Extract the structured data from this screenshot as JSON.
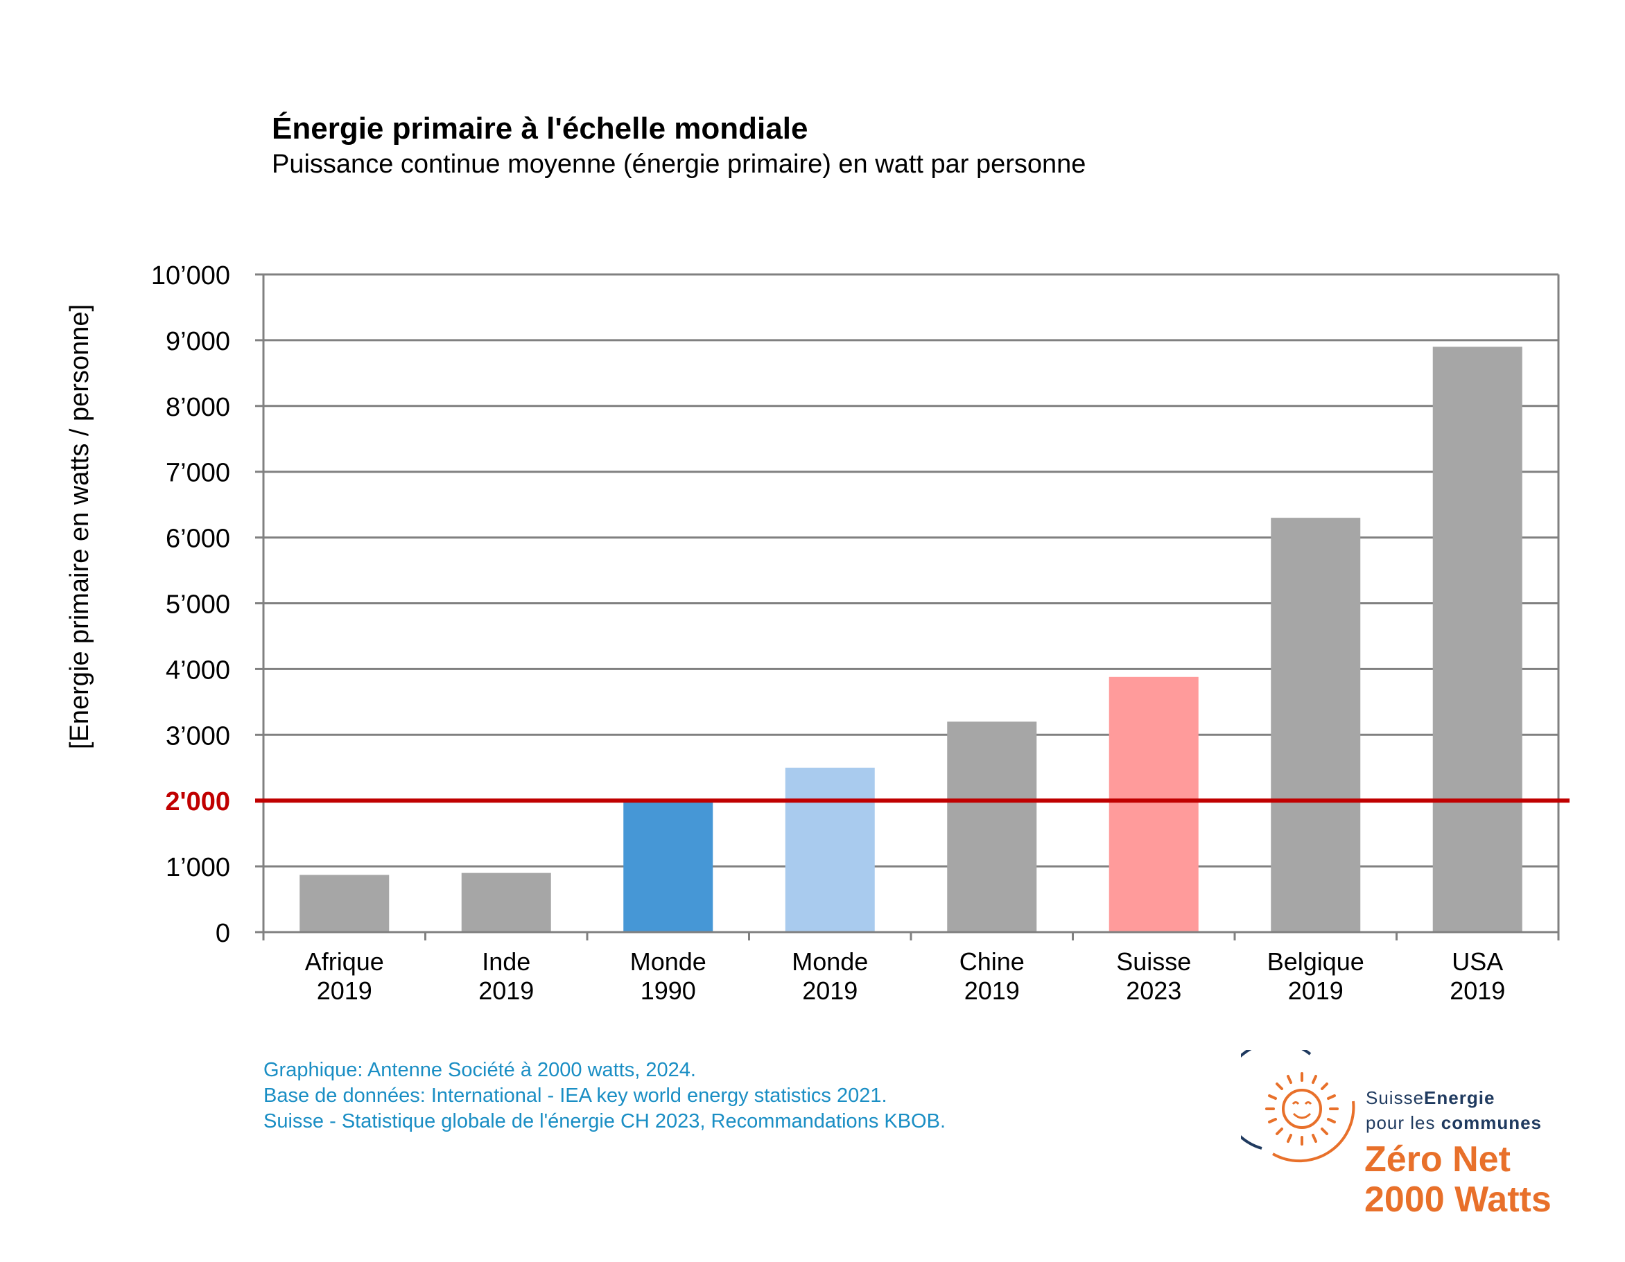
{
  "chart_data": {
    "type": "bar",
    "title": "Énergie primaire à l'échelle mondiale",
    "subtitle": "Puissance continue moyenne (énergie primaire) en watt par personne",
    "ylabel": "[Energie primaire en watts / personne]",
    "ylim": [
      0,
      10000
    ],
    "yticks": [
      {
        "value": 0,
        "label": "0"
      },
      {
        "value": 1000,
        "label": "1’000"
      },
      {
        "value": 2000,
        "label": "2'000",
        "highlight": true
      },
      {
        "value": 3000,
        "label": "3’000"
      },
      {
        "value": 4000,
        "label": "4’000"
      },
      {
        "value": 5000,
        "label": "5’000"
      },
      {
        "value": 6000,
        "label": "6’000"
      },
      {
        "value": 7000,
        "label": "7’000"
      },
      {
        "value": 8000,
        "label": "8’000"
      },
      {
        "value": 9000,
        "label": "9’000"
      },
      {
        "value": 10000,
        "label": "10’000"
      }
    ],
    "categories": [
      {
        "line1": "Afrique",
        "line2": "2019"
      },
      {
        "line1": "Inde",
        "line2": "2019"
      },
      {
        "line1": "Monde",
        "line2": "1990"
      },
      {
        "line1": "Monde",
        "line2": "2019"
      },
      {
        "line1": "Chine",
        "line2": "2019"
      },
      {
        "line1": "Suisse",
        "line2": "2023"
      },
      {
        "line1": "Belgique",
        "line2": "2019"
      },
      {
        "line1": "USA",
        "line2": "2019"
      }
    ],
    "values": [
      870,
      900,
      2000,
      2500,
      3200,
      3880,
      6300,
      8900
    ],
    "bar_colors": [
      "#a6a6a6",
      "#a6a6a6",
      "#4697d6",
      "#a9cbee",
      "#a6a6a6",
      "#ff9b9b",
      "#a6a6a6",
      "#a6a6a6"
    ],
    "reference_line": {
      "value": 2000,
      "color": "#c00000"
    },
    "grid": true,
    "grid_color": "#808080"
  },
  "source": {
    "line1": "Graphique: Antenne Société à 2000 watts, 2024.",
    "line2": "Base de données: International - IEA key world energy statistics 2021.",
    "line3": "Suisse - Statistique globale de l'énergie CH 2023, Recommandations KBOB."
  },
  "logo": {
    "brand_light": "Suisse",
    "brand_bold": "Energie",
    "sub_light": "pour les ",
    "sub_bold": "communes",
    "tagline1": "Zéro Net",
    "tagline2": "2000 Watts",
    "sun_color": "#e8702a",
    "ring_color": "#1f3a5f"
  }
}
